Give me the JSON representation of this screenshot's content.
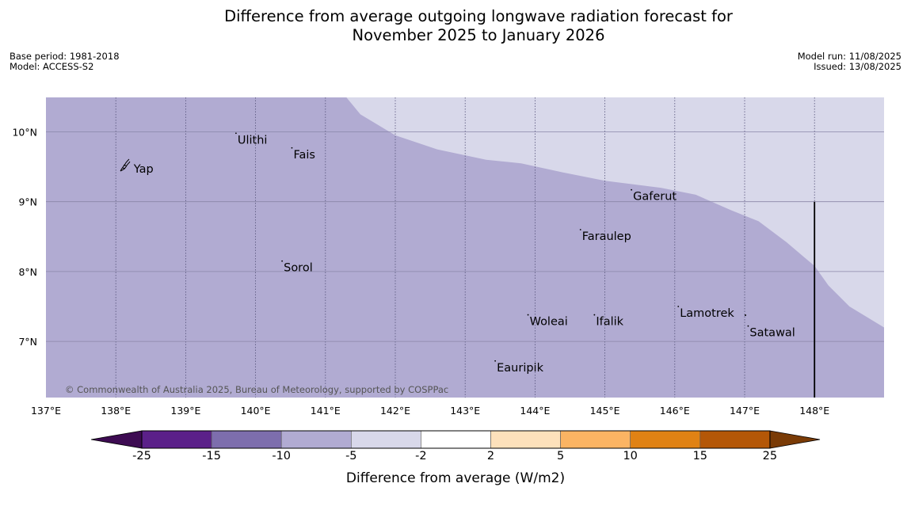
{
  "header": {
    "title_line1": "Difference from average outgoing longwave radiation forecast for",
    "title_line2": "November 2025 to January 2026",
    "base_period": "Base period: 1981-2018",
    "model": "Model: ACCESS-S2",
    "model_run": "Model run: 11/08/2025",
    "issued": "Issued: 13/08/2025"
  },
  "map": {
    "copyright": "© Commonwealth of Australia 2025, Bureau of Meteorology, supported by COSPPac",
    "lon_range": [
      137,
      149
    ],
    "lat_range": [
      6.2,
      10.5
    ],
    "lon_ticks": [
      "137°E",
      "138°E",
      "139°E",
      "140°E",
      "141°E",
      "142°E",
      "143°E",
      "144°E",
      "145°E",
      "146°E",
      "147°E",
      "148°E"
    ],
    "lat_ticks": [
      "7°N",
      "8°N",
      "9°N",
      "10°N"
    ],
    "lat_tick_values": [
      7,
      8,
      9,
      10
    ],
    "fill_colors": {
      "band_-10_-5": "#b1abd2",
      "band_-5_-2": "#d8d8ea",
      "gridline": "#8a86a8"
    },
    "contour_boundary": [
      [
        141.3,
        10.5
      ],
      [
        141.5,
        10.25
      ],
      [
        142.0,
        9.95
      ],
      [
        142.6,
        9.75
      ],
      [
        143.3,
        9.6
      ],
      [
        143.8,
        9.55
      ],
      [
        144.4,
        9.42
      ],
      [
        145.0,
        9.3
      ],
      [
        145.8,
        9.2
      ],
      [
        146.3,
        9.1
      ],
      [
        146.8,
        8.88
      ],
      [
        147.2,
        8.72
      ],
      [
        147.6,
        8.42
      ],
      [
        148.0,
        8.08
      ],
      [
        148.2,
        7.8
      ],
      [
        148.5,
        7.5
      ],
      [
        149.0,
        7.2
      ]
    ],
    "boundary_line": {
      "lon": 148.0,
      "lat_from": 6.2,
      "lat_to": 9.0
    },
    "places": [
      {
        "name": "Ulithi",
        "lon": 139.72,
        "lat": 9.98
      },
      {
        "name": "Fais",
        "lon": 140.52,
        "lat": 9.77
      },
      {
        "name": "Yap",
        "lon": 138.12,
        "lat": 9.52
      },
      {
        "name": "Gaferut",
        "lon": 145.38,
        "lat": 9.17
      },
      {
        "name": "Faraulep",
        "lon": 144.65,
        "lat": 8.6
      },
      {
        "name": "Sorol",
        "lon": 140.38,
        "lat": 8.15
      },
      {
        "name": "Lamotrek",
        "lon": 146.05,
        "lat": 7.5
      },
      {
        "name": "Satawal",
        "lon": 147.05,
        "lat": 7.22
      },
      {
        "name": "Woleai",
        "lon": 143.9,
        "lat": 7.38
      },
      {
        "name": "Ifalik",
        "lon": 144.85,
        "lat": 7.38
      },
      {
        "name": "Eauripik",
        "lon": 143.43,
        "lat": 6.72
      }
    ]
  },
  "colorbar": {
    "label": "Difference from average (W/m2)",
    "tick_labels": [
      "-25",
      "-15",
      "-10",
      "-5",
      "-2",
      "2",
      "5",
      "10",
      "15",
      "25"
    ],
    "colors": [
      "#3d0b52",
      "#5b2089",
      "#7d6ead",
      "#b1abd2",
      "#d8d8ea",
      "#ffffff",
      "#fde1bb",
      "#fbb463",
      "#e08214",
      "#b45707",
      "#7a3b06"
    ]
  }
}
